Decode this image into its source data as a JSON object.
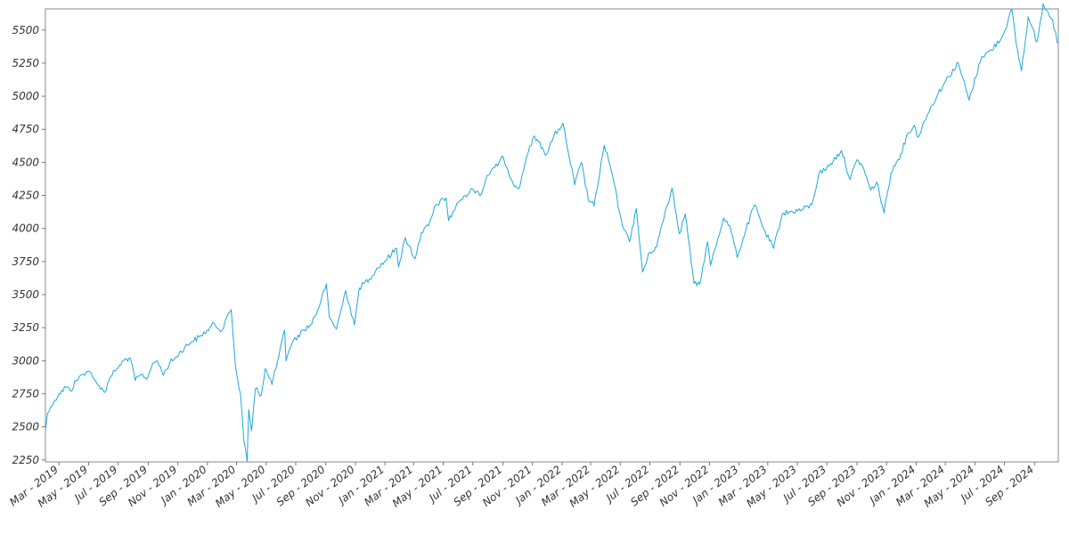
{
  "chart_data": {
    "type": "line",
    "title": "",
    "xlabel": "",
    "ylabel": "",
    "grid": false,
    "legend": "none",
    "line_color": "#1ba8dc",
    "ylim": [
      2235,
      5660
    ],
    "xlim": [
      "2019-02-01",
      "2024-10-20"
    ],
    "y_ticks": [
      2250,
      2500,
      2750,
      3000,
      3250,
      3500,
      3750,
      4000,
      4250,
      4500,
      4750,
      5000,
      5250,
      5500
    ],
    "x_ticks": [
      {
        "date": "2019-03-01",
        "label": "Mar - 2019"
      },
      {
        "date": "2019-05-01",
        "label": "May - 2019"
      },
      {
        "date": "2019-07-01",
        "label": "Jul - 2019"
      },
      {
        "date": "2019-09-01",
        "label": "Sep - 2019"
      },
      {
        "date": "2019-11-01",
        "label": "Nov - 2019"
      },
      {
        "date": "2020-01-01",
        "label": "Jan - 2020"
      },
      {
        "date": "2020-03-01",
        "label": "Mar - 2020"
      },
      {
        "date": "2020-05-01",
        "label": "May - 2020"
      },
      {
        "date": "2020-07-01",
        "label": "Jul - 2020"
      },
      {
        "date": "2020-09-01",
        "label": "Sep - 2020"
      },
      {
        "date": "2020-11-01",
        "label": "Nov - 2020"
      },
      {
        "date": "2021-01-01",
        "label": "Jan - 2021"
      },
      {
        "date": "2021-03-01",
        "label": "Mar - 2021"
      },
      {
        "date": "2021-05-01",
        "label": "May - 2021"
      },
      {
        "date": "2021-07-01",
        "label": "Jul - 2021"
      },
      {
        "date": "2021-09-01",
        "label": "Sep - 2021"
      },
      {
        "date": "2021-11-01",
        "label": "Nov - 2021"
      },
      {
        "date": "2022-01-01",
        "label": "Jan - 2022"
      },
      {
        "date": "2022-03-01",
        "label": "Mar - 2022"
      },
      {
        "date": "2022-05-01",
        "label": "May - 2022"
      },
      {
        "date": "2022-07-01",
        "label": "Jul - 2022"
      },
      {
        "date": "2022-09-01",
        "label": "Sep - 2022"
      },
      {
        "date": "2022-11-01",
        "label": "Nov - 2022"
      },
      {
        "date": "2023-01-01",
        "label": "Jan - 2023"
      },
      {
        "date": "2023-03-01",
        "label": "Mar - 2023"
      },
      {
        "date": "2023-05-01",
        "label": "May - 2023"
      },
      {
        "date": "2023-07-01",
        "label": "Jul - 2023"
      },
      {
        "date": "2023-09-01",
        "label": "Sep - 2023"
      },
      {
        "date": "2023-11-01",
        "label": "Nov - 2023"
      },
      {
        "date": "2024-01-01",
        "label": "Jan - 2024"
      },
      {
        "date": "2024-03-01",
        "label": "Mar - 2024"
      },
      {
        "date": "2024-05-01",
        "label": "May - 2024"
      },
      {
        "date": "2024-07-01",
        "label": "Jul - 2024"
      },
      {
        "date": "2024-09-01",
        "label": "Sep - 2024"
      }
    ],
    "series": [
      {
        "name": "",
        "points": [
          [
            "2019-02-01",
            2480
          ],
          [
            "2019-02-05",
            2600
          ],
          [
            "2019-02-12",
            2650
          ],
          [
            "2019-02-20",
            2700
          ],
          [
            "2019-03-01",
            2750
          ],
          [
            "2019-03-15",
            2800
          ],
          [
            "2019-03-25",
            2770
          ],
          [
            "2019-04-05",
            2850
          ],
          [
            "2019-04-20",
            2900
          ],
          [
            "2019-05-01",
            2920
          ],
          [
            "2019-05-10",
            2870
          ],
          [
            "2019-05-20",
            2820
          ],
          [
            "2019-06-03",
            2760
          ],
          [
            "2019-06-15",
            2880
          ],
          [
            "2019-06-28",
            2940
          ],
          [
            "2019-07-15",
            3010
          ],
          [
            "2019-07-26",
            3020
          ],
          [
            "2019-08-05",
            2850
          ],
          [
            "2019-08-20",
            2900
          ],
          [
            "2019-08-28",
            2860
          ],
          [
            "2019-09-10",
            2980
          ],
          [
            "2019-09-20",
            3000
          ],
          [
            "2019-10-02",
            2890
          ],
          [
            "2019-10-15",
            2980
          ],
          [
            "2019-10-28",
            3030
          ],
          [
            "2019-11-15",
            3100
          ],
          [
            "2019-11-28",
            3140
          ],
          [
            "2019-12-15",
            3180
          ],
          [
            "2019-12-31",
            3230
          ],
          [
            "2020-01-15",
            3280
          ],
          [
            "2020-01-31",
            3230
          ],
          [
            "2020-02-10",
            3330
          ],
          [
            "2020-02-19",
            3386
          ],
          [
            "2020-02-28",
            2950
          ],
          [
            "2020-03-09",
            2750
          ],
          [
            "2020-03-16",
            2400
          ],
          [
            "2020-03-23",
            2237
          ],
          [
            "2020-03-26",
            2630
          ],
          [
            "2020-04-01",
            2470
          ],
          [
            "2020-04-09",
            2790
          ],
          [
            "2020-04-21",
            2740
          ],
          [
            "2020-04-29",
            2940
          ],
          [
            "2020-05-13",
            2820
          ],
          [
            "2020-05-27",
            3030
          ],
          [
            "2020-06-08",
            3230
          ],
          [
            "2020-06-11",
            3000
          ],
          [
            "2020-06-23",
            3130
          ],
          [
            "2020-07-15",
            3230
          ],
          [
            "2020-07-31",
            3270
          ],
          [
            "2020-08-15",
            3380
          ],
          [
            "2020-09-02",
            3580
          ],
          [
            "2020-09-08",
            3330
          ],
          [
            "2020-09-23",
            3240
          ],
          [
            "2020-10-12",
            3530
          ],
          [
            "2020-10-30",
            3270
          ],
          [
            "2020-11-09",
            3550
          ],
          [
            "2020-11-30",
            3620
          ],
          [
            "2020-12-15",
            3700
          ],
          [
            "2020-12-31",
            3750
          ],
          [
            "2021-01-25",
            3850
          ],
          [
            "2021-01-29",
            3710
          ],
          [
            "2021-02-12",
            3930
          ],
          [
            "2021-03-04",
            3770
          ],
          [
            "2021-03-17",
            3970
          ],
          [
            "2021-04-01",
            4020
          ],
          [
            "2021-04-16",
            4180
          ],
          [
            "2021-05-07",
            4230
          ],
          [
            "2021-05-12",
            4060
          ],
          [
            "2021-06-01",
            4200
          ],
          [
            "2021-06-15",
            4250
          ],
          [
            "2021-06-30",
            4300
          ],
          [
            "2021-07-19",
            4260
          ],
          [
            "2021-07-30",
            4400
          ],
          [
            "2021-08-15",
            4460
          ],
          [
            "2021-09-02",
            4540
          ],
          [
            "2021-09-20",
            4360
          ],
          [
            "2021-10-04",
            4300
          ],
          [
            "2021-10-20",
            4540
          ],
          [
            "2021-11-05",
            4700
          ],
          [
            "2021-11-30",
            4560
          ],
          [
            "2021-12-15",
            4700
          ],
          [
            "2022-01-03",
            4796
          ],
          [
            "2022-01-10",
            4650
          ],
          [
            "2022-01-27",
            4330
          ],
          [
            "2022-02-10",
            4500
          ],
          [
            "2022-02-24",
            4220
          ],
          [
            "2022-03-08",
            4170
          ],
          [
            "2022-03-29",
            4630
          ],
          [
            "2022-04-15",
            4400
          ],
          [
            "2022-04-29",
            4130
          ],
          [
            "2022-05-09",
            3990
          ],
          [
            "2022-05-20",
            3900
          ],
          [
            "2022-06-03",
            4150
          ],
          [
            "2022-06-16",
            3670
          ],
          [
            "2022-07-01",
            3820
          ],
          [
            "2022-07-15",
            3860
          ],
          [
            "2022-08-01",
            4120
          ],
          [
            "2022-08-16",
            4305
          ],
          [
            "2022-08-31",
            3960
          ],
          [
            "2022-09-12",
            4110
          ],
          [
            "2022-09-30",
            3585
          ],
          [
            "2022-10-12",
            3580
          ],
          [
            "2022-10-28",
            3900
          ],
          [
            "2022-11-03",
            3720
          ],
          [
            "2022-11-30",
            4080
          ],
          [
            "2022-12-13",
            4020
          ],
          [
            "2022-12-28",
            3780
          ],
          [
            "2023-01-15",
            3990
          ],
          [
            "2023-02-02",
            4180
          ],
          [
            "2023-02-24",
            3970
          ],
          [
            "2023-03-13",
            3850
          ],
          [
            "2023-03-31",
            4110
          ],
          [
            "2023-04-20",
            4130
          ],
          [
            "2023-05-10",
            4140
          ],
          [
            "2023-05-31",
            4180
          ],
          [
            "2023-06-15",
            4420
          ],
          [
            "2023-06-30",
            4450
          ],
          [
            "2023-07-31",
            4590
          ],
          [
            "2023-08-18",
            4370
          ],
          [
            "2023-09-01",
            4520
          ],
          [
            "2023-09-15",
            4450
          ],
          [
            "2023-09-29",
            4290
          ],
          [
            "2023-10-12",
            4350
          ],
          [
            "2023-10-27",
            4117
          ],
          [
            "2023-11-10",
            4420
          ],
          [
            "2023-11-30",
            4560
          ],
          [
            "2023-12-15",
            4720
          ],
          [
            "2023-12-28",
            4780
          ],
          [
            "2024-01-05",
            4690
          ],
          [
            "2024-01-24",
            4860
          ],
          [
            "2024-02-15",
            5020
          ],
          [
            "2024-03-08",
            5150
          ],
          [
            "2024-03-28",
            5250
          ],
          [
            "2024-04-19",
            4970
          ],
          [
            "2024-05-15",
            5300
          ],
          [
            "2024-06-05",
            5350
          ],
          [
            "2024-06-28",
            5460
          ],
          [
            "2024-07-16",
            5660
          ],
          [
            "2024-07-25",
            5400
          ],
          [
            "2024-08-05",
            5190
          ],
          [
            "2024-08-19",
            5600
          ],
          [
            "2024-09-06",
            5410
          ],
          [
            "2024-09-19",
            5700
          ],
          [
            "2024-10-08",
            5580
          ],
          [
            "2024-10-18",
            5400
          ]
        ]
      }
    ]
  }
}
